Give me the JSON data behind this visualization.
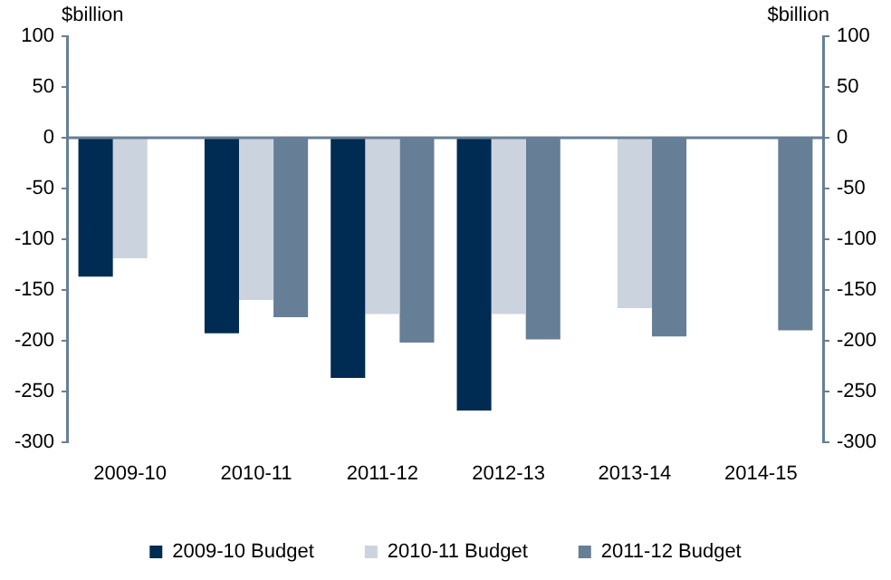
{
  "chart_data": {
    "type": "bar",
    "categories": [
      "2009-10",
      "2010-11",
      "2011-12",
      "2012-13",
      "2013-14",
      "2014-15"
    ],
    "series": [
      {
        "name": "2009-10 Budget",
        "color": "#002b52",
        "values": [
          -137,
          -193,
          -237,
          -269,
          null,
          null
        ]
      },
      {
        "name": "2010-11 Budget",
        "color": "#cbd4de",
        "values": [
          -119,
          -160,
          -174,
          -174,
          -168,
          null
        ]
      },
      {
        "name": "2011-12 Budget",
        "color": "#667f96",
        "values": [
          null,
          -177,
          -202,
          -199,
          -196,
          -190
        ]
      }
    ],
    "ylabel": "$billion",
    "y2label": "$billion",
    "ylim": [
      -300,
      100
    ],
    "yticks": [
      -300,
      -250,
      -200,
      -150,
      -100,
      -50,
      0,
      50,
      100
    ],
    "y2lim": [
      -300,
      100
    ],
    "y2ticks": [
      -300,
      -250,
      -200,
      -150,
      -100,
      -50,
      0,
      50,
      100
    ],
    "ref_lines": [
      {
        "axis": "y",
        "value": 0,
        "color": "#667f96"
      }
    ],
    "legend": "bottom"
  }
}
